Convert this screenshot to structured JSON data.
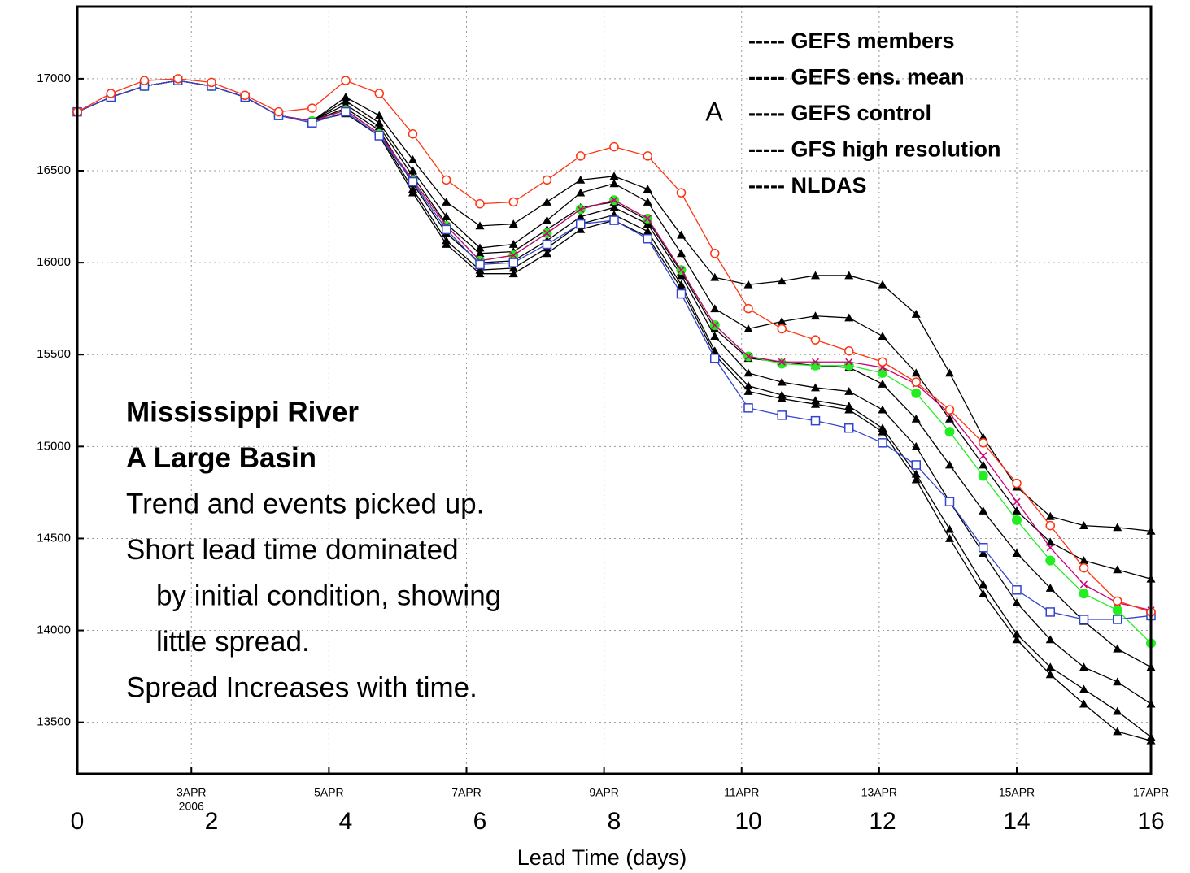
{
  "chart_data": {
    "type": "line",
    "x_label": "Lead Time  (days)",
    "x": [
      0,
      0.5,
      1,
      1.5,
      2,
      2.5,
      3,
      3.5,
      4,
      4.5,
      5,
      5.5,
      6,
      6.5,
      7,
      7.5,
      8,
      8.5,
      9,
      9.5,
      10,
      10.5,
      11,
      11.5,
      12,
      12.5,
      13,
      13.5,
      14,
      14.5,
      15,
      15.5,
      16
    ],
    "xlim": [
      0,
      16
    ],
    "xticks": [
      0,
      2,
      4,
      6,
      8,
      10,
      12,
      14,
      16
    ],
    "date_ticks": [
      {
        "value": 1.7,
        "label": "3APR"
      },
      {
        "value": 3.75,
        "label": "5APR"
      },
      {
        "value": 5.8,
        "label": "7APR"
      },
      {
        "value": 7.85,
        "label": "9APR"
      },
      {
        "value": 9.9,
        "label": "11APR"
      },
      {
        "value": 11.95,
        "label": "13APR"
      },
      {
        "value": 14,
        "label": "15APR"
      },
      {
        "value": 16,
        "label": "17APR"
      }
    ],
    "date_year": "2006",
    "ylim": [
      13220,
      17393
    ],
    "yticks": [
      13500,
      14000,
      14500,
      15000,
      15500,
      16000,
      16500,
      17000
    ],
    "grid": true,
    "legend_marker": "-----",
    "series": [
      {
        "name": "GEFS members",
        "color": "#000000",
        "marker": "triangle",
        "runs": [
          [
            16820,
            16900,
            16960,
            16990,
            16960,
            16900,
            16800,
            16770,
            16900,
            16800,
            16560,
            16330,
            16200,
            16210,
            16330,
            16450,
            16470,
            16400,
            16150,
            15920,
            15880,
            15900,
            15930,
            15930,
            15880,
            15720,
            15400,
            15050,
            14780,
            14620,
            14570,
            14560,
            14540
          ],
          [
            16820,
            16900,
            16960,
            16990,
            16960,
            16900,
            16800,
            16770,
            16880,
            16760,
            16500,
            16250,
            16080,
            16100,
            16230,
            16380,
            16430,
            16330,
            16050,
            15750,
            15640,
            15680,
            15710,
            15700,
            15600,
            15400,
            15150,
            14900,
            14650,
            14480,
            14380,
            14330,
            14280
          ],
          [
            16820,
            16900,
            16960,
            16990,
            16960,
            16900,
            16800,
            16770,
            16860,
            16740,
            16470,
            16210,
            16050,
            16060,
            16180,
            16300,
            16330,
            16230,
            15950,
            15640,
            15480,
            15460,
            15440,
            15430,
            15340,
            15150,
            14900,
            14650,
            14420,
            14230,
            14050,
            13900,
            13800
          ],
          [
            16820,
            16900,
            16960,
            16990,
            16960,
            16900,
            16800,
            16770,
            16840,
            16720,
            16430,
            16160,
            16000,
            16010,
            16120,
            16250,
            16300,
            16210,
            15930,
            15600,
            15400,
            15350,
            15320,
            15300,
            15200,
            15000,
            14700,
            14420,
            14150,
            13950,
            13800,
            13720,
            13600
          ],
          [
            16820,
            16900,
            16960,
            16990,
            16960,
            16900,
            16800,
            16770,
            16830,
            16700,
            16400,
            16120,
            15960,
            15970,
            16080,
            16210,
            16260,
            16170,
            15880,
            15520,
            15330,
            15280,
            15250,
            15220,
            15100,
            14850,
            14550,
            14250,
            13980,
            13800,
            13680,
            13560,
            13420
          ],
          [
            16820,
            16900,
            16960,
            16990,
            16960,
            16900,
            16800,
            16770,
            16810,
            16690,
            16380,
            16100,
            15940,
            15940,
            16050,
            16180,
            16230,
            16140,
            15860,
            15500,
            15300,
            15260,
            15230,
            15200,
            15080,
            14820,
            14500,
            14200,
            13950,
            13760,
            13600,
            13450,
            13400
          ]
        ]
      },
      {
        "name": "GEFS ens. mean",
        "color": "#22ee22",
        "marker": "dot",
        "values": [
          16820,
          16900,
          16960,
          16990,
          16960,
          16900,
          16800,
          16770,
          16830,
          16700,
          16450,
          16200,
          16010,
          16040,
          16160,
          16290,
          16340,
          16240,
          15960,
          15660,
          15490,
          15450,
          15440,
          15440,
          15400,
          15290,
          15080,
          14840,
          14600,
          14380,
          14200,
          14110,
          13930
        ]
      },
      {
        "name": "GEFS control",
        "color": "#cc0077",
        "marker": "cross",
        "values": [
          16820,
          16900,
          16960,
          16990,
          16960,
          16900,
          16800,
          16770,
          16830,
          16700,
          16450,
          16200,
          16010,
          16040,
          16160,
          16290,
          16340,
          16240,
          15960,
          15660,
          15490,
          15460,
          15460,
          15460,
          15430,
          15340,
          15180,
          14950,
          14700,
          14450,
          14250,
          14150,
          14110
        ]
      },
      {
        "name": "GFS high resolution",
        "color": "#3344cc",
        "marker": "square",
        "values": [
          16820,
          16900,
          16960,
          16990,
          16960,
          16900,
          16800,
          16760,
          16820,
          16690,
          16440,
          16180,
          15990,
          16000,
          16100,
          16210,
          16230,
          16130,
          15830,
          15480,
          15210,
          15170,
          15140,
          15100,
          15020,
          14900,
          14700,
          14450,
          14220,
          14100,
          14060,
          14060,
          14080
        ]
      },
      {
        "name": "NLDAS",
        "color": "#ff3311",
        "marker": "circle",
        "values": [
          16820,
          16920,
          16990,
          17000,
          16980,
          16910,
          16820,
          16840,
          16990,
          16920,
          16700,
          16450,
          16320,
          16330,
          16450,
          16580,
          16630,
          16580,
          16380,
          16050,
          15750,
          15640,
          15580,
          15520,
          15460,
          15350,
          15200,
          15020,
          14800,
          14570,
          14340,
          14160,
          14100
        ]
      }
    ],
    "legend_annotation": "A",
    "annotation_lines": [
      {
        "text": "Mississippi River",
        "bold": true
      },
      {
        "text": "A Large Basin",
        "bold": true
      },
      {
        "text": "Trend and events picked up."
      },
      {
        "text": "Short lead time dominated"
      },
      {
        "text": "by initial condition, showing",
        "indent": true
      },
      {
        "text": "little spread.",
        "indent": true
      },
      {
        "text": "Spread Increases with time."
      }
    ]
  }
}
